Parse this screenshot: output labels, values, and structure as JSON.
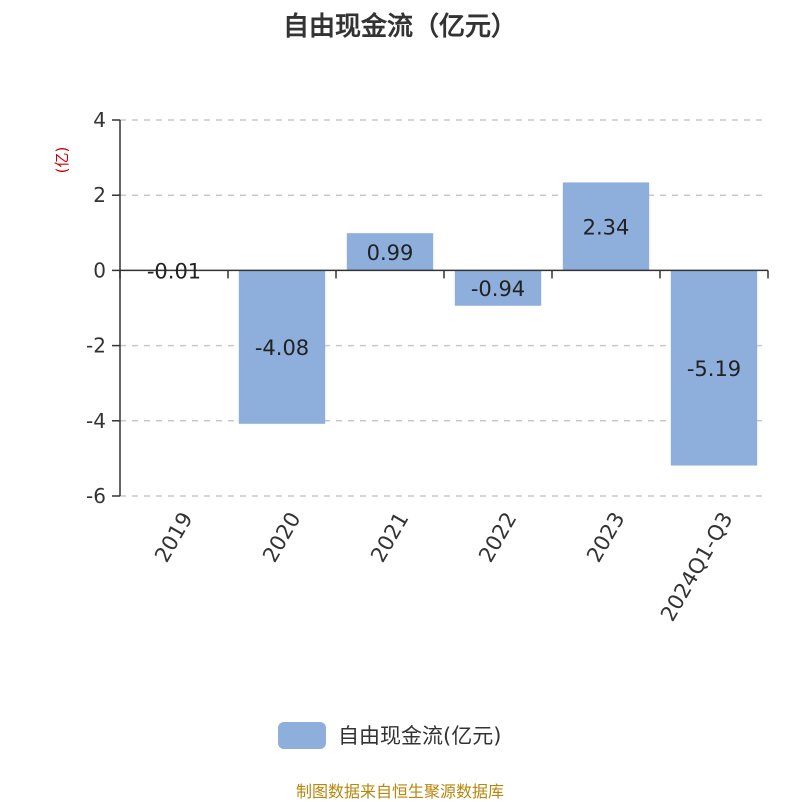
{
  "chart_data": {
    "type": "bar",
    "title": "自由现金流（亿元）",
    "unit_label": "(亿)",
    "categories": [
      "2019",
      "2020",
      "2021",
      "2022",
      "2023",
      "2024Q1-Q3"
    ],
    "series": [
      {
        "name": "自由现金流(亿元)",
        "values": [
          -0.01,
          -4.08,
          0.99,
          -0.94,
          2.34,
          -5.19
        ],
        "labels": [
          "-0.01",
          "-4.08",
          "0.99",
          "-0.94",
          "2.34",
          "-5.19"
        ],
        "color": "#8eaedb"
      }
    ],
    "ylim": [
      -6,
      4
    ],
    "yticks": [
      4,
      2,
      0,
      -2,
      -4,
      -6
    ],
    "grid": true,
    "legend_position": "bottom"
  },
  "source": "制图数据来自恒生聚源数据库"
}
